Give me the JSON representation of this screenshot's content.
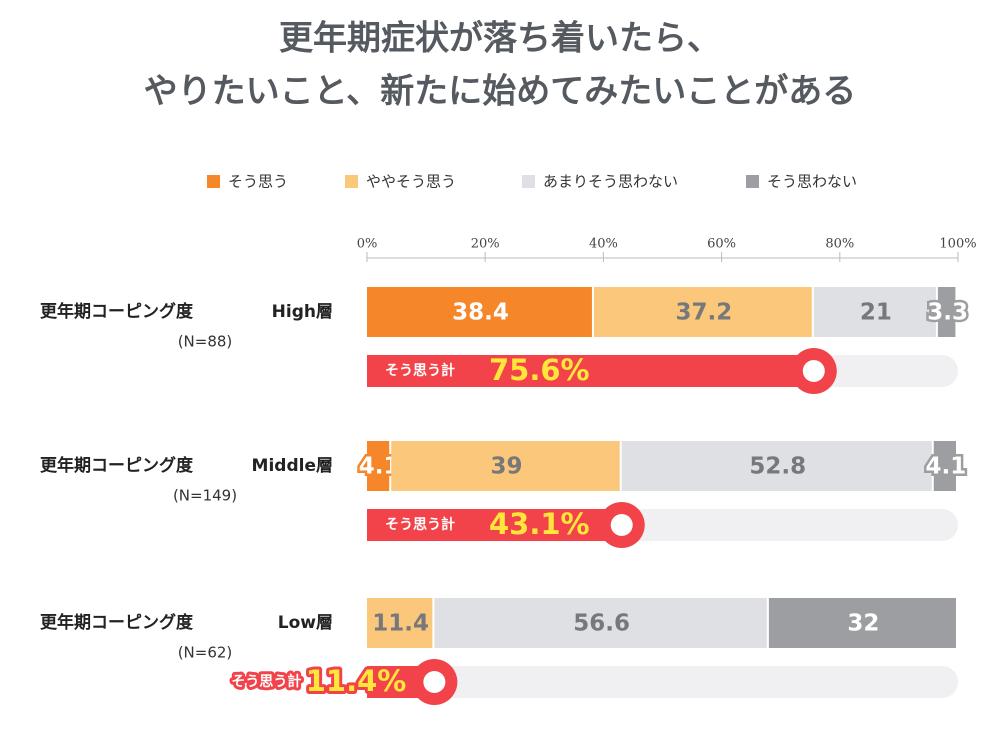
{
  "chart_data": {
    "type": "bar",
    "orientation": "horizontal",
    "stacked": true,
    "title": [
      "更年期症状が落ち着いたら、",
      "やりたいこと、新たに始めてみたいことがある"
    ],
    "category_group": "更年期コーピング度",
    "categories": [
      "High層",
      "Middle層",
      "Low層"
    ],
    "sample_sizes": [
      "(N=88)",
      "(N=149)",
      "(N=62)"
    ],
    "series": [
      {
        "name": "そう思う",
        "color": "#f5862a",
        "values": [
          38.4,
          4.1,
          null
        ]
      },
      {
        "name": "ややそう思う",
        "color": "#fbc77b",
        "values": [
          37.2,
          39.0,
          11.4
        ]
      },
      {
        "name": "あまりそう思わない",
        "color": "#dfe0e4",
        "values": [
          21.0,
          52.8,
          56.6
        ]
      },
      {
        "name": "そう思わない",
        "color": "#9d9ea2",
        "values": [
          3.3,
          4.1,
          32.0
        ]
      }
    ],
    "totals": {
      "label": "そう思う計",
      "color": "#f2434a",
      "values": [
        75.6,
        43.1,
        11.4
      ],
      "value_labels": [
        "75.6%",
        "43.1%",
        "11.4%"
      ]
    },
    "xlim": [
      0,
      100
    ],
    "xticks": [
      {
        "value": 0,
        "label": "0%"
      },
      {
        "value": 20,
        "label": "20%"
      },
      {
        "value": 40,
        "label": "40%"
      },
      {
        "value": 60,
        "label": "60%"
      },
      {
        "value": 80,
        "label": "80%"
      },
      {
        "value": 100,
        "label": "100%"
      }
    ],
    "legend": "top"
  }
}
